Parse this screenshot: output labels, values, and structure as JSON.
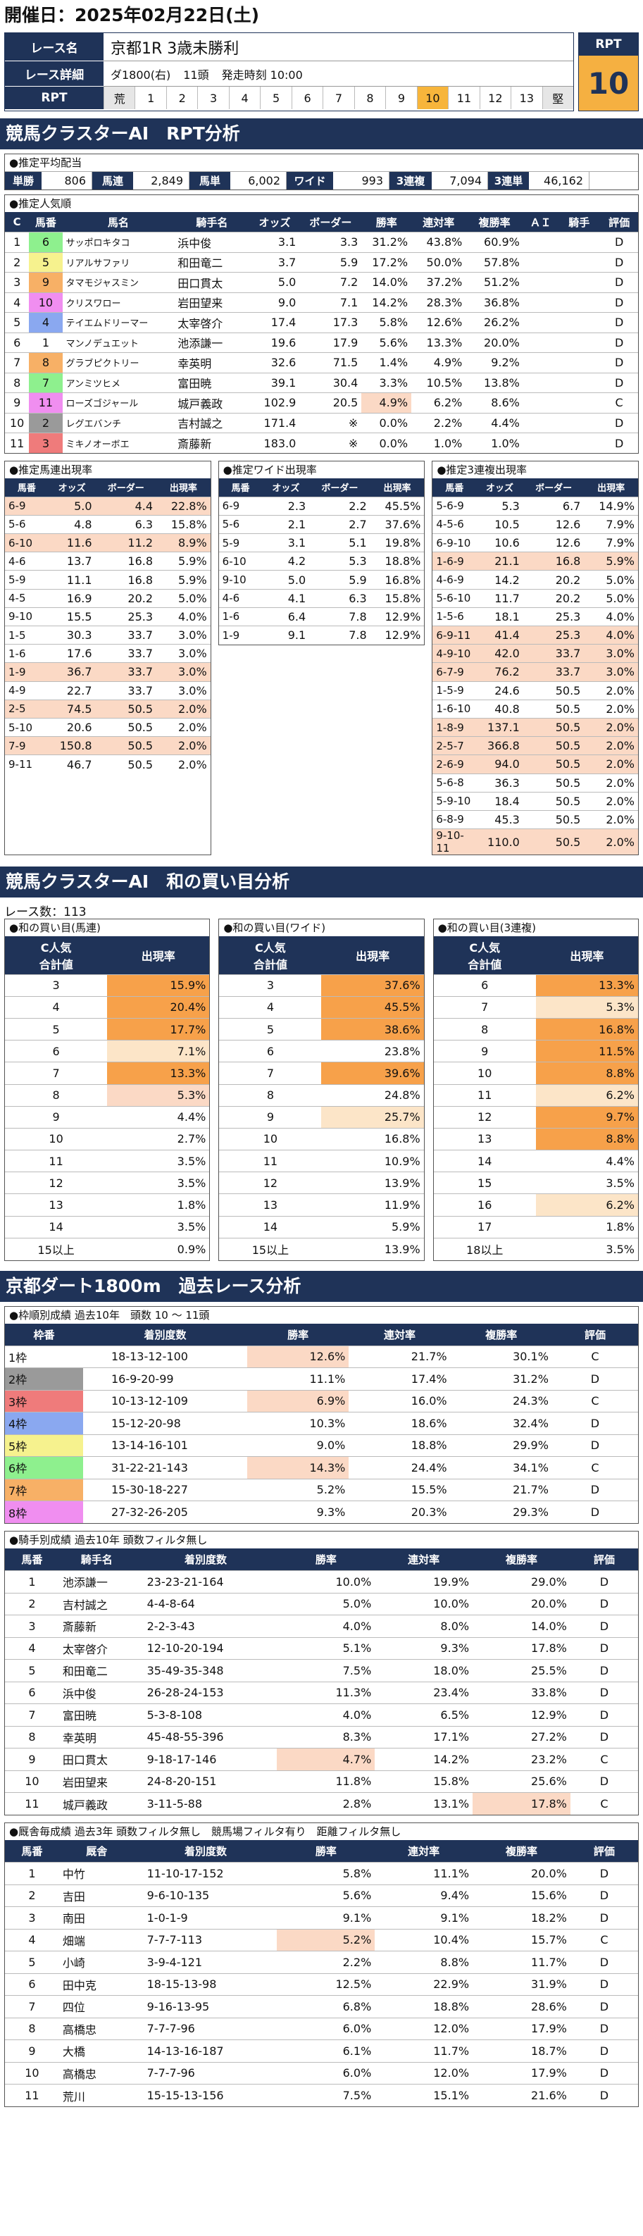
{
  "date_title": "開催日：2025年02月22日(土)",
  "race": {
    "name_label": "レース名",
    "name": "京都1R 3歳未勝利",
    "detail_label": "レース詳細",
    "detail_course": "ダ1800(右)",
    "detail_heads": "11頭",
    "detail_time": "発走時刻 10:00",
    "rpt_label": "RPT",
    "rpt_scale": [
      "荒",
      "1",
      "2",
      "3",
      "4",
      "5",
      "6",
      "7",
      "8",
      "9",
      "10",
      "11",
      "12",
      "13",
      "堅"
    ],
    "rpt_highlight": "10",
    "rpt_box_label": "RPT",
    "rpt_value": "10"
  },
  "section1": {
    "title": "競馬クラスターAI　RPT分析"
  },
  "payout": {
    "title": "●推定平均配当",
    "items": [
      {
        "k": "単勝",
        "v": "806"
      },
      {
        "k": "馬連",
        "v": "2,849"
      },
      {
        "k": "馬単",
        "v": "6,002"
      },
      {
        "k": "ワイド",
        "v": "993"
      },
      {
        "k": "3連複",
        "v": "7,094"
      },
      {
        "k": "3連単",
        "v": "46,162"
      }
    ]
  },
  "popularity": {
    "title": "●推定人気順",
    "headers": [
      "C",
      "馬番",
      "馬名",
      "騎手名",
      "オッズ",
      "ボーダー",
      "勝率",
      "連対率",
      "複勝率",
      "ＡＩ",
      "騎手",
      "評価"
    ],
    "rows": [
      [
        "1",
        "6",
        "サッポロキタコ",
        "浜中俊",
        "3.1",
        "3.3",
        "31.2%",
        "43.8%",
        "60.9%",
        "",
        "",
        "D"
      ],
      [
        "2",
        "5",
        "リアルサファリ",
        "和田竜二",
        "3.7",
        "5.9",
        "17.2%",
        "50.0%",
        "57.8%",
        "",
        "",
        "D"
      ],
      [
        "3",
        "9",
        "タマモジャスミン",
        "田口貫太",
        "5.0",
        "7.2",
        "14.0%",
        "37.2%",
        "51.2%",
        "",
        "",
        "D"
      ],
      [
        "4",
        "10",
        "クリスワロー",
        "岩田望来",
        "9.0",
        "7.1",
        "14.2%",
        "28.3%",
        "36.8%",
        "",
        "",
        "D"
      ],
      [
        "5",
        "4",
        "テイエムドリーマー",
        "太宰啓介",
        "17.4",
        "17.3",
        "5.8%",
        "12.6%",
        "26.2%",
        "",
        "",
        "D"
      ],
      [
        "6",
        "1",
        "マンノデュエット",
        "池添謙一",
        "19.6",
        "17.9",
        "5.6%",
        "13.3%",
        "20.0%",
        "",
        "",
        "D"
      ],
      [
        "7",
        "8",
        "グラブピクトリー",
        "幸英明",
        "32.6",
        "71.5",
        "1.4%",
        "4.9%",
        "9.2%",
        "",
        "",
        "D"
      ],
      [
        "8",
        "7",
        "アンミツヒメ",
        "富田暁",
        "39.1",
        "30.4",
        "3.3%",
        "10.5%",
        "13.8%",
        "",
        "",
        "D"
      ],
      [
        "9",
        "11",
        "ローズゴジャール",
        "城戸義政",
        "102.9",
        "20.5",
        "4.9%",
        "6.2%",
        "8.6%",
        "",
        "",
        "C"
      ],
      [
        "10",
        "2",
        "レグエバンチ",
        "吉村誠之",
        "171.4",
        "※",
        "0.0%",
        "2.2%",
        "4.4%",
        "",
        "",
        "D"
      ],
      [
        "11",
        "3",
        "ミキノオーボエ",
        "斎藤新",
        "183.0",
        "※",
        "0.0%",
        "1.0%",
        "1.0%",
        "",
        "",
        "D"
      ]
    ]
  },
  "umaren": {
    "title": "●推定馬連出現率",
    "headers": [
      "馬番",
      "オッズ",
      "ボーダー",
      "出現率"
    ],
    "rows": [
      [
        "6-9",
        "5.0",
        "4.4",
        "22.8%"
      ],
      [
        "5-6",
        "4.8",
        "6.3",
        "15.8%"
      ],
      [
        "6-10",
        "11.6",
        "11.2",
        "8.9%"
      ],
      [
        "4-6",
        "13.7",
        "16.8",
        "5.9%"
      ],
      [
        "5-9",
        "11.1",
        "16.8",
        "5.9%"
      ],
      [
        "4-5",
        "16.9",
        "20.2",
        "5.0%"
      ],
      [
        "9-10",
        "15.5",
        "25.3",
        "4.0%"
      ],
      [
        "1-5",
        "30.3",
        "33.7",
        "3.0%"
      ],
      [
        "1-6",
        "17.6",
        "33.7",
        "3.0%"
      ],
      [
        "1-9",
        "36.7",
        "33.7",
        "3.0%"
      ],
      [
        "4-9",
        "22.7",
        "33.7",
        "3.0%"
      ],
      [
        "2-5",
        "74.5",
        "50.5",
        "2.0%"
      ],
      [
        "5-10",
        "20.6",
        "50.5",
        "2.0%"
      ],
      [
        "7-9",
        "150.8",
        "50.5",
        "2.0%"
      ],
      [
        "9-11",
        "46.7",
        "50.5",
        "2.0%"
      ]
    ]
  },
  "wide": {
    "title": "●推定ワイド出現率",
    "headers": [
      "馬番",
      "オッズ",
      "ボーダー",
      "出現率"
    ],
    "rows": [
      [
        "6-9",
        "2.3",
        "2.2",
        "45.5%"
      ],
      [
        "5-6",
        "2.1",
        "2.7",
        "37.6%"
      ],
      [
        "5-9",
        "3.1",
        "5.1",
        "19.8%"
      ],
      [
        "6-10",
        "4.2",
        "5.3",
        "18.8%"
      ],
      [
        "9-10",
        "5.0",
        "5.9",
        "16.8%"
      ],
      [
        "4-6",
        "4.1",
        "6.3",
        "15.8%"
      ],
      [
        "1-6",
        "6.4",
        "7.8",
        "12.9%"
      ],
      [
        "1-9",
        "9.1",
        "7.8",
        "12.9%"
      ]
    ]
  },
  "trifecta": {
    "title": "●推定3連複出現率",
    "headers": [
      "馬番",
      "オッズ",
      "ボーダー",
      "出現率"
    ],
    "rows": [
      [
        "5-6-9",
        "5.3",
        "6.7",
        "14.9%"
      ],
      [
        "4-5-6",
        "10.5",
        "12.6",
        "7.9%"
      ],
      [
        "6-9-10",
        "10.6",
        "12.6",
        "7.9%"
      ],
      [
        "1-6-9",
        "21.1",
        "16.8",
        "5.9%"
      ],
      [
        "4-6-9",
        "14.2",
        "20.2",
        "5.0%"
      ],
      [
        "5-6-10",
        "11.7",
        "20.2",
        "5.0%"
      ],
      [
        "1-5-6",
        "18.1",
        "25.3",
        "4.0%"
      ],
      [
        "6-9-11",
        "41.4",
        "25.3",
        "4.0%"
      ],
      [
        "4-9-10",
        "42.0",
        "33.7",
        "3.0%"
      ],
      [
        "6-7-9",
        "76.2",
        "33.7",
        "3.0%"
      ],
      [
        "1-5-9",
        "24.6",
        "50.5",
        "2.0%"
      ],
      [
        "1-6-10",
        "40.8",
        "50.5",
        "2.0%"
      ],
      [
        "1-8-9",
        "137.1",
        "50.5",
        "2.0%"
      ],
      [
        "2-5-7",
        "366.8",
        "50.5",
        "2.0%"
      ],
      [
        "2-6-9",
        "94.0",
        "50.5",
        "2.0%"
      ],
      [
        "5-6-8",
        "36.3",
        "50.5",
        "2.0%"
      ],
      [
        "5-9-10",
        "18.4",
        "50.5",
        "2.0%"
      ],
      [
        "6-8-9",
        "45.3",
        "50.5",
        "2.0%"
      ],
      [
        "9-10-11",
        "110.0",
        "50.5",
        "2.0%"
      ]
    ]
  },
  "section2": {
    "title": "競馬クラスターAI　和の買い目分析",
    "race_count": "レース数：113"
  },
  "kai_umaren": {
    "title": "●和の買い目(馬連)",
    "h1": "C人気\n合計値",
    "h2": "出現率",
    "rows": [
      [
        "3",
        "15.9%"
      ],
      [
        "4",
        "20.4%"
      ],
      [
        "5",
        "17.7%"
      ],
      [
        "6",
        "7.1%"
      ],
      [
        "7",
        "13.3%"
      ],
      [
        "8",
        "5.3%"
      ],
      [
        "9",
        "4.4%"
      ],
      [
        "10",
        "2.7%"
      ],
      [
        "11",
        "3.5%"
      ],
      [
        "12",
        "3.5%"
      ],
      [
        "13",
        "1.8%"
      ],
      [
        "14",
        "3.5%"
      ],
      [
        "15以上",
        "0.9%"
      ]
    ],
    "colors": [
      "o",
      "o",
      "o",
      "l",
      "o",
      "p",
      "",
      "",
      "",
      "",
      "",
      "",
      ""
    ]
  },
  "kai_wide": {
    "title": "●和の買い目(ワイド)",
    "h1": "C人気\n合計値",
    "h2": "出現率",
    "rows": [
      [
        "3",
        "37.6%"
      ],
      [
        "4",
        "45.5%"
      ],
      [
        "5",
        "38.6%"
      ],
      [
        "6",
        "23.8%"
      ],
      [
        "7",
        "39.6%"
      ],
      [
        "8",
        "24.8%"
      ],
      [
        "9",
        "25.7%"
      ],
      [
        "10",
        "16.8%"
      ],
      [
        "11",
        "10.9%"
      ],
      [
        "12",
        "13.9%"
      ],
      [
        "13",
        "11.9%"
      ],
      [
        "14",
        "5.9%"
      ],
      [
        "15以上",
        "13.9%"
      ]
    ],
    "colors": [
      "o",
      "o",
      "o",
      "",
      "o",
      "",
      "l",
      "",
      "",
      "",
      "",
      "",
      ""
    ]
  },
  "kai_trio": {
    "title": "●和の買い目(3連複)",
    "h1": "C人気\n合計値",
    "h2": "出現率",
    "rows": [
      [
        "6",
        "13.3%"
      ],
      [
        "7",
        "5.3%"
      ],
      [
        "8",
        "16.8%"
      ],
      [
        "9",
        "11.5%"
      ],
      [
        "10",
        "8.8%"
      ],
      [
        "11",
        "6.2%"
      ],
      [
        "12",
        "9.7%"
      ],
      [
        "13",
        "8.8%"
      ],
      [
        "14",
        "4.4%"
      ],
      [
        "15",
        "3.5%"
      ],
      [
        "16",
        "6.2%"
      ],
      [
        "17",
        "1.8%"
      ],
      [
        "18以上",
        "3.5%"
      ]
    ],
    "colors": [
      "o",
      "l",
      "o",
      "o",
      "o",
      "l",
      "o",
      "o",
      "",
      "",
      "l",
      "",
      ""
    ]
  },
  "section3": {
    "title": "京都ダート1800m　過去レース分析"
  },
  "waku": {
    "title": "●枠順別成績 過去10年　頭数 10 ～ 11頭",
    "headers": [
      "枠番",
      "着別度数",
      "勝率",
      "連対率",
      "複勝率",
      "評価"
    ],
    "rows": [
      [
        "1枠",
        "18-13-12-100",
        "12.6%",
        "21.7%",
        "30.1%",
        "C"
      ],
      [
        "2枠",
        "16-9-20-99",
        "11.1%",
        "17.4%",
        "31.2%",
        "D"
      ],
      [
        "3枠",
        "10-13-12-109",
        "6.9%",
        "16.0%",
        "24.3%",
        "C"
      ],
      [
        "4枠",
        "15-12-20-98",
        "10.3%",
        "18.6%",
        "32.4%",
        "D"
      ],
      [
        "5枠",
        "13-14-16-101",
        "9.0%",
        "18.8%",
        "29.9%",
        "D"
      ],
      [
        "6枠",
        "31-22-21-143",
        "14.3%",
        "24.4%",
        "34.1%",
        "C"
      ],
      [
        "7枠",
        "15-30-18-227",
        "5.2%",
        "15.5%",
        "21.7%",
        "D"
      ],
      [
        "8枠",
        "27-32-26-205",
        "9.3%",
        "20.3%",
        "29.3%",
        "D"
      ]
    ],
    "hl": [
      true,
      false,
      true,
      false,
      false,
      true,
      false,
      false
    ]
  },
  "jockey": {
    "title": "●騎手別成績 過去10年 頭数フィルタ無し",
    "headers": [
      "馬番",
      "騎手名",
      "着別度数",
      "勝率",
      "連対率",
      "複勝率",
      "評価"
    ],
    "rows": [
      [
        "1",
        "池添謙一",
        "23-23-21-164",
        "10.0%",
        "19.9%",
        "29.0%",
        "D"
      ],
      [
        "2",
        "吉村誠之",
        "4-4-8-64",
        "5.0%",
        "10.0%",
        "20.0%",
        "D"
      ],
      [
        "3",
        "斎藤新",
        "2-2-3-43",
        "4.0%",
        "8.0%",
        "14.0%",
        "D"
      ],
      [
        "4",
        "太宰啓介",
        "12-10-20-194",
        "5.1%",
        "9.3%",
        "17.8%",
        "D"
      ],
      [
        "5",
        "和田竜二",
        "35-49-35-348",
        "7.5%",
        "18.0%",
        "25.5%",
        "D"
      ],
      [
        "6",
        "浜中俊",
        "26-28-24-153",
        "11.3%",
        "23.4%",
        "33.8%",
        "D"
      ],
      [
        "7",
        "富田暁",
        "5-3-8-108",
        "4.0%",
        "6.5%",
        "12.9%",
        "D"
      ],
      [
        "8",
        "幸英明",
        "45-48-55-396",
        "8.3%",
        "17.1%",
        "27.2%",
        "D"
      ],
      [
        "9",
        "田口貫太",
        "9-18-17-146",
        "4.7%",
        "14.2%",
        "23.2%",
        "C"
      ],
      [
        "10",
        "岩田望来",
        "24-8-20-151",
        "11.8%",
        "15.8%",
        "25.6%",
        "D"
      ],
      [
        "11",
        "城戸義政",
        "3-11-5-88",
        "2.8%",
        "13.1%",
        "17.8%",
        "C"
      ]
    ],
    "hl": [
      [],
      [],
      [],
      [],
      [],
      [],
      [],
      [],
      [
        3
      ],
      [],
      [
        5
      ]
    ]
  },
  "stable": {
    "title": "●厩舎毎成績 過去3年 頭数フィルタ無し　競馬場フィルタ有り　距離フィルタ無し",
    "headers": [
      "馬番",
      "厩舎",
      "着別度数",
      "勝率",
      "連対率",
      "複勝率",
      "評価"
    ],
    "rows": [
      [
        "1",
        "中竹",
        "11-10-17-152",
        "5.8%",
        "11.1%",
        "20.0%",
        "D"
      ],
      [
        "2",
        "吉田",
        "9-6-10-135",
        "5.6%",
        "9.4%",
        "15.6%",
        "D"
      ],
      [
        "3",
        "南田",
        "1-0-1-9",
        "9.1%",
        "9.1%",
        "18.2%",
        "D"
      ],
      [
        "4",
        "畑端",
        "7-7-7-113",
        "5.2%",
        "10.4%",
        "15.7%",
        "C"
      ],
      [
        "5",
        "小崎",
        "3-9-4-121",
        "2.2%",
        "8.8%",
        "11.7%",
        "D"
      ],
      [
        "6",
        "田中克",
        "18-15-13-98",
        "12.5%",
        "22.9%",
        "31.9%",
        "D"
      ],
      [
        "7",
        "四位",
        "9-16-13-95",
        "6.8%",
        "18.8%",
        "28.6%",
        "D"
      ],
      [
        "8",
        "高橋忠",
        "7-7-7-96",
        "6.0%",
        "12.0%",
        "17.9%",
        "D"
      ],
      [
        "9",
        "大橋",
        "14-13-16-187",
        "6.1%",
        "11.7%",
        "18.7%",
        "D"
      ],
      [
        "10",
        "高橋忠",
        "7-7-7-96",
        "6.0%",
        "12.0%",
        "17.9%",
        "D"
      ],
      [
        "11",
        "荒川",
        "15-15-13-156",
        "7.5%",
        "15.1%",
        "21.6%",
        "D"
      ]
    ],
    "hl": [
      [],
      [],
      [],
      [
        3
      ],
      [],
      [],
      [],
      [],
      [],
      [],
      []
    ]
  },
  "colors": {
    "navy": "#1f3358",
    "orange": "#f7a14a",
    "peach": "#fbd9c5",
    "gold": "#f5b041"
  }
}
